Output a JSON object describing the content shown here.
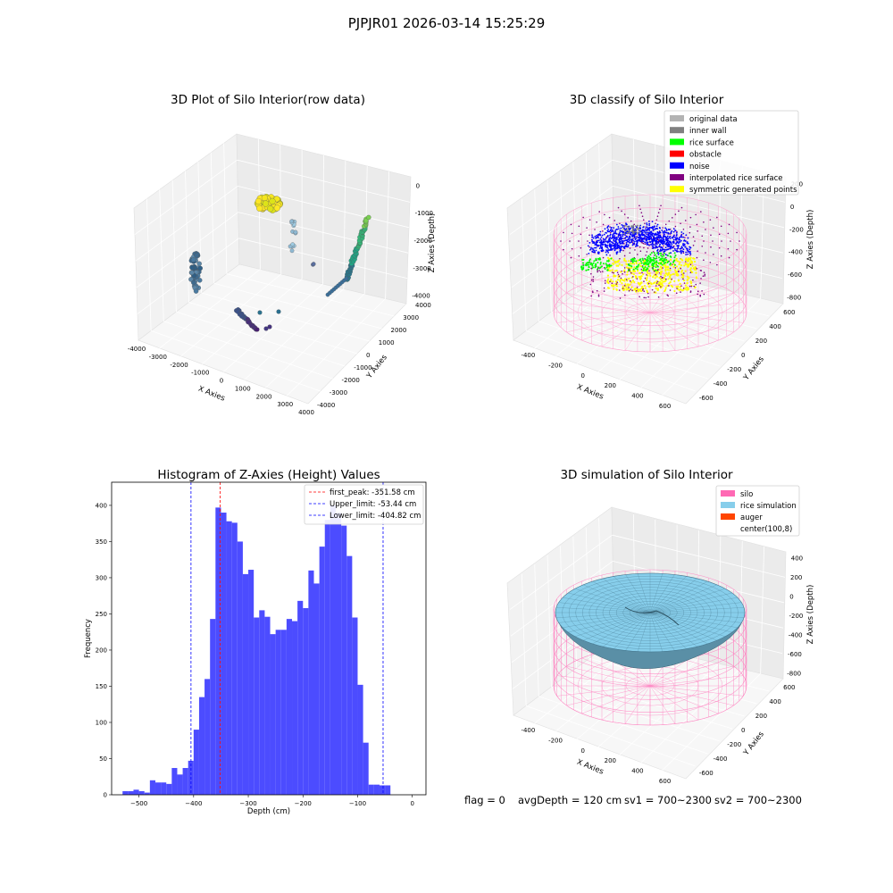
{
  "suptitle": "PJPJR01 2026-03-14 15:25:29",
  "status": {
    "flag": "flag = 0",
    "avg_depth": "avgDepth = 120 cm",
    "sv1": "sv1 = 700~2300",
    "sv2": "sv2 = 700~2300"
  },
  "chart_data": [
    {
      "type": "scatter",
      "projection": "3d",
      "title": "3D Plot of Silo Interior(row data)",
      "xlabel": "X Axies",
      "ylabel": "Y Axies",
      "zlabel": "Z Axies (Depth)",
      "xlim": [
        -4000,
        4000
      ],
      "ylim": [
        -4000,
        4000
      ],
      "zlim": [
        -4500,
        0
      ],
      "xticks": [
        "-4000",
        "-3000",
        "-2000",
        "-1000",
        "0",
        "1000",
        "2000",
        "3000",
        "4000"
      ],
      "yticks": [
        "-4000",
        "-3000",
        "-2000",
        "-1000",
        "0",
        "1000",
        "2000",
        "3000",
        "4000"
      ],
      "zticks": [
        "0",
        "-1000",
        "-2000",
        "-3000",
        "-4000"
      ],
      "colormap": "viridis",
      "point_groups": [
        {
          "description": "top cluster",
          "x": [
            -1000,
            -500
          ],
          "y": [
            1500,
            2500
          ],
          "z": [
            -1100,
            -700
          ],
          "color": "#fde725"
        },
        {
          "description": "right arc",
          "x": [
            2500,
            3900
          ],
          "y": [
            -1500,
            1800
          ],
          "z": [
            -3600,
            -1300
          ],
          "color": "#35b779"
        },
        {
          "description": "left cluster",
          "x": [
            -3800,
            -3300
          ],
          "y": [
            -500,
            300
          ],
          "z": [
            -3800,
            -2700
          ],
          "color": "#31688e"
        },
        {
          "description": "bottom arc",
          "x": [
            -1500,
            500
          ],
          "y": [
            -3800,
            -2800
          ],
          "z": [
            -4500,
            -3500
          ],
          "color": "#472d7b"
        }
      ]
    },
    {
      "type": "scatter",
      "projection": "3d",
      "title": "3D classify of Silo Interior",
      "xlabel": "X Axies",
      "ylabel": "Y Axies",
      "zlabel": "Z Axies (Depth)",
      "xticks": [
        "-400",
        "-200",
        "0",
        "200",
        "400",
        "600"
      ],
      "yticks": [
        "-600",
        "-400",
        "-200",
        "0",
        "200",
        "400",
        "600"
      ],
      "zticks": [
        "200",
        "0",
        "-200",
        "-400",
        "-600",
        "-800"
      ],
      "legend_position": "upper right",
      "legend": [
        {
          "label": "original data",
          "color": "#b3b3b3"
        },
        {
          "label": "inner wall",
          "color": "#808080"
        },
        {
          "label": "rice surface",
          "color": "#00ff00"
        },
        {
          "label": "obstacle",
          "color": "#ff0000"
        },
        {
          "label": "noise",
          "color": "#0000ff"
        },
        {
          "label": "interpolated rice surface",
          "color": "#800080"
        },
        {
          "label": "symmetric generated points",
          "color": "#ffff00"
        }
      ]
    },
    {
      "type": "bar",
      "title": "Histogram of Z-Axies (Height) Values",
      "xlabel": "Depth (cm)",
      "ylabel": "Frequency",
      "xlim": [
        -550,
        25
      ],
      "ylim": [
        0,
        432
      ],
      "xticks": [
        -500,
        -400,
        -300,
        -200,
        -100,
        0
      ],
      "yticks": [
        0,
        50,
        100,
        150,
        200,
        250,
        300,
        350,
        400
      ],
      "bar_color": "#4c4cff",
      "bin_start": -530,
      "bin_width": 10,
      "values": [
        5,
        5,
        7,
        5,
        3,
        20,
        17,
        17,
        15,
        37,
        28,
        37,
        47,
        90,
        135,
        160,
        243,
        397,
        390,
        378,
        376,
        350,
        305,
        311,
        245,
        255,
        246,
        222,
        228,
        228,
        243,
        240,
        268,
        258,
        310,
        292,
        343,
        380,
        400,
        390,
        372,
        330,
        245,
        152,
        72,
        14,
        14,
        13,
        13
      ],
      "vlines": [
        {
          "x": -351.58,
          "color": "#ff0000"
        },
        {
          "x": -53.44,
          "color": "#0000ff"
        },
        {
          "x": -404.82,
          "color": "#0000ff"
        }
      ],
      "legend_position": "upper right",
      "legend": [
        {
          "label": "first_peak: -351.58 cm",
          "color": "#ff0000"
        },
        {
          "label": "Upper_limit: -53.44 cm",
          "color": "#0000ff"
        },
        {
          "label": "Lower_limit: -404.82 cm",
          "color": "#0000ff"
        }
      ]
    },
    {
      "type": "surface",
      "projection": "3d",
      "title": "3D simulation of Silo Interior",
      "xlabel": "X Axies",
      "ylabel": "Y Axies",
      "zlabel": "Z Axies (Depth)",
      "xticks": [
        "-400",
        "-200",
        "0",
        "200",
        "400",
        "600"
      ],
      "yticks": [
        "-600",
        "-400",
        "-200",
        "0",
        "200",
        "400",
        "600"
      ],
      "zticks": [
        "400",
        "200",
        "0",
        "-200",
        "-400",
        "-600",
        "-800"
      ],
      "legend_position": "upper right",
      "legend": [
        {
          "label": "silo",
          "color": "#ff69b4"
        },
        {
          "label": "rice simulation",
          "color": "#87ceeb"
        },
        {
          "label": "auger",
          "color": "#ff4500"
        },
        {
          "label": "center(100,8)",
          "color": ""
        }
      ]
    }
  ]
}
